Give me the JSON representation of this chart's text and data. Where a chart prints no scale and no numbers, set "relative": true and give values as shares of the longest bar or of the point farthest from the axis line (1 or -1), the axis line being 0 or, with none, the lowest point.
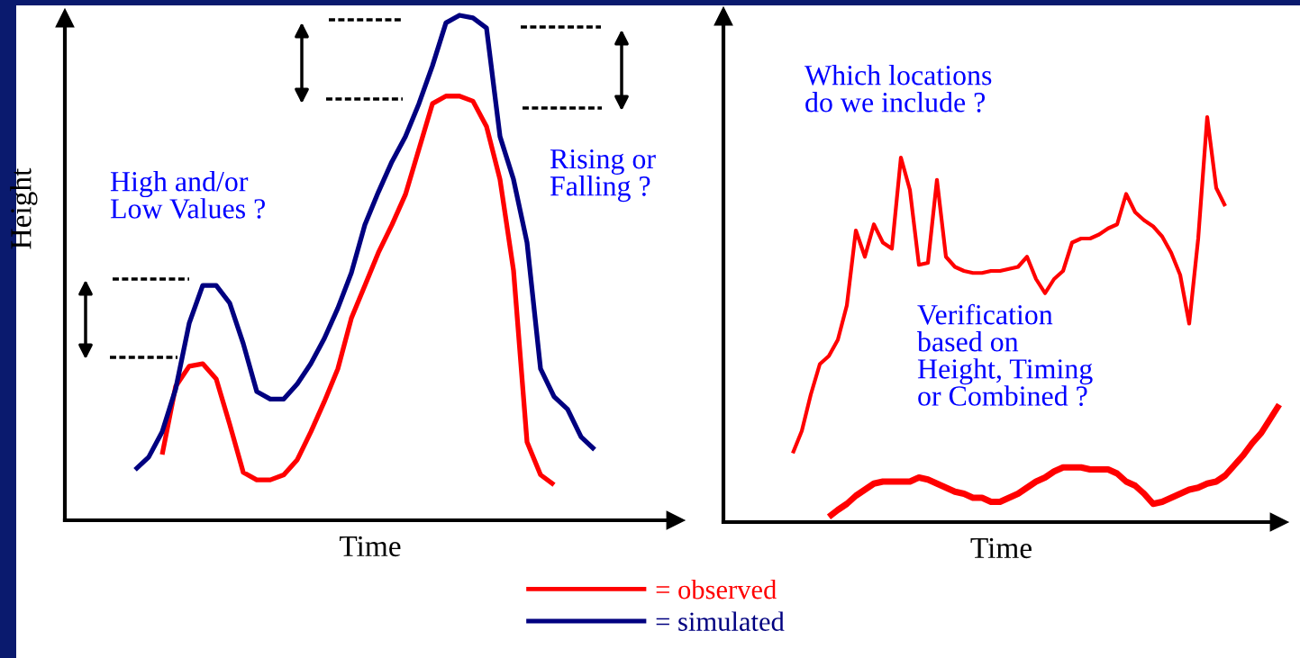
{
  "chart_data": [
    {
      "type": "line",
      "relative": true,
      "xlabel": "Time",
      "ylabel": "Height",
      "tick_labels": false,
      "legend": "bottom",
      "categories": [
        null,
        null,
        null,
        null,
        null,
        null,
        null,
        null,
        null,
        null,
        null,
        null,
        null,
        null,
        null,
        null,
        null,
        null,
        null,
        null,
        null,
        null,
        null,
        null,
        null,
        null,
        null,
        null,
        null,
        null,
        null,
        null,
        null,
        null,
        null,
        null,
        null,
        null,
        null,
        null,
        null,
        null,
        null,
        null,
        null,
        null
      ],
      "series": [
        {
          "name": "= observed",
          "color": "#ff0000",
          "values": [
            null,
            null,
            null,
            null,
            null,
            null,
            null,
            0.13,
            0.265,
            0.305,
            0.31,
            0.28,
            0.19,
            0.095,
            0.08,
            0.08,
            0.09,
            0.12,
            0.175,
            0.235,
            0.3,
            0.4,
            0.465,
            0.53,
            0.585,
            0.645,
            0.735,
            0.825,
            0.84,
            0.84,
            0.83,
            0.78,
            0.675,
            0.495,
            0.155,
            0.09,
            0.07,
            null,
            null,
            null,
            null,
            null,
            null,
            null,
            null,
            null
          ]
        },
        {
          "name": "= simulated",
          "color": "#000080",
          "values": [
            null,
            null,
            null,
            null,
            null,
            0.1,
            0.125,
            0.175,
            0.26,
            0.39,
            0.465,
            0.465,
            0.43,
            0.35,
            0.255,
            0.24,
            0.24,
            0.27,
            0.31,
            0.36,
            0.42,
            0.49,
            0.585,
            0.65,
            0.71,
            0.76,
            0.825,
            0.9,
            0.985,
            1.0,
            0.995,
            0.975,
            0.76,
            0.675,
            0.55,
            0.3,
            0.245,
            0.22,
            0.165,
            0.14,
            null,
            null,
            null,
            null,
            null,
            null
          ]
        }
      ],
      "annotations": [
        "High and/or\nLow Values ?",
        "Rising or\nFalling ?"
      ]
    },
    {
      "type": "line",
      "relative": true,
      "xlabel": "Time",
      "tick_labels": false,
      "categories": [
        null,
        null,
        null,
        null,
        null,
        null,
        null,
        null,
        null,
        null,
        null,
        null,
        null,
        null,
        null,
        null,
        null,
        null,
        null,
        null,
        null,
        null,
        null,
        null,
        null,
        null,
        null,
        null,
        null,
        null,
        null,
        null,
        null,
        null,
        null,
        null,
        null,
        null,
        null,
        null,
        null,
        null,
        null,
        null,
        null,
        null,
        null,
        null,
        null,
        null,
        null,
        null,
        null,
        null,
        null,
        null,
        null,
        null,
        null,
        null,
        null,
        null
      ],
      "series": [
        {
          "color": "#ff0000",
          "values": [
            null,
            null,
            null,
            null,
            null,
            null,
            null,
            0.17,
            0.225,
            0.315,
            0.39,
            0.41,
            0.45,
            0.535,
            0.72,
            0.655,
            0.735,
            0.69,
            0.675,
            0.9,
            0.82,
            0.635,
            0.64,
            0.845,
            0.655,
            0.63,
            0.62,
            0.615,
            0.615,
            0.62,
            0.62,
            0.625,
            0.63,
            0.655,
            0.6,
            0.565,
            0.6,
            0.62,
            0.69,
            0.7,
            0.7,
            0.71,
            0.725,
            0.735,
            0.81,
            0.765,
            0.745,
            0.73,
            0.705,
            0.665,
            0.61,
            0.49,
            0.7,
            1.0,
            0.825,
            0.78,
            null,
            null,
            null,
            null,
            null,
            null
          ]
        },
        {
          "color": "#ff0000",
          "values": [
            null,
            null,
            null,
            null,
            null,
            null,
            null,
            null,
            null,
            null,
            null,
            0.013,
            0.03,
            0.045,
            0.065,
            0.08,
            0.095,
            0.1,
            0.1,
            0.1,
            0.1,
            0.11,
            0.105,
            0.095,
            0.085,
            0.075,
            0.07,
            0.06,
            0.06,
            0.05,
            0.05,
            0.06,
            0.07,
            0.085,
            0.1,
            0.11,
            0.125,
            0.135,
            0.135,
            0.135,
            0.13,
            0.13,
            0.13,
            0.12,
            0.1,
            0.09,
            0.07,
            0.045,
            0.05,
            0.06,
            0.07,
            0.08,
            0.085,
            0.095,
            0.1,
            0.115,
            0.14,
            0.165,
            0.195,
            0.22,
            0.255,
            0.29
          ]
        }
      ],
      "annotations": [
        "Which locations\ndo we include ?",
        "Verification\nbased on\nHeight, Timing\nor Combined ?"
      ]
    }
  ]
}
